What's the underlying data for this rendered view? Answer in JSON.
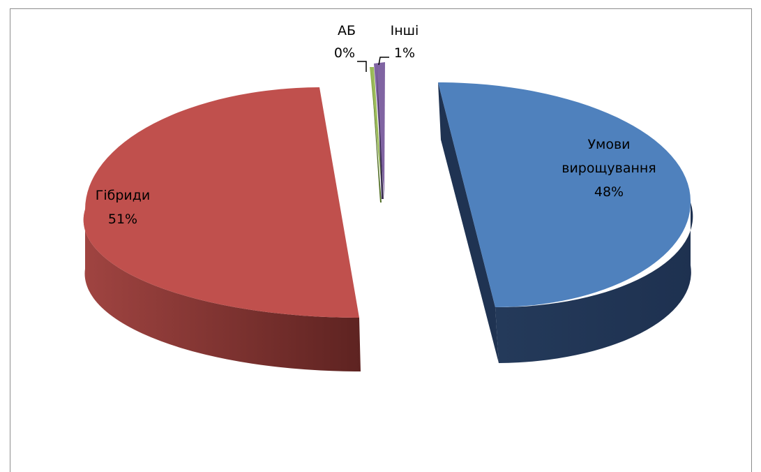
{
  "chart_data": {
    "type": "pie",
    "style": "3d-exploded",
    "legend": "none",
    "slices": [
      {
        "label": "Умови вирощування",
        "label_lines": [
          "Умови",
          "вирощування"
        ],
        "value": 48,
        "percent_text": "48%",
        "color": "#4f81bd"
      },
      {
        "label": "Гібриди",
        "label_lines": [
          "Гібриди"
        ],
        "value": 51,
        "percent_text": "51%",
        "color": "#c0504d"
      },
      {
        "label": "АБ",
        "label_lines": [
          "АБ"
        ],
        "value": 0.2,
        "percent_text": "0%",
        "color": "#9bbb59"
      },
      {
        "label": "Інші",
        "label_lines": [
          "Інші"
        ],
        "value": 1,
        "percent_text": "1%",
        "color": "#8064a2"
      }
    ]
  }
}
